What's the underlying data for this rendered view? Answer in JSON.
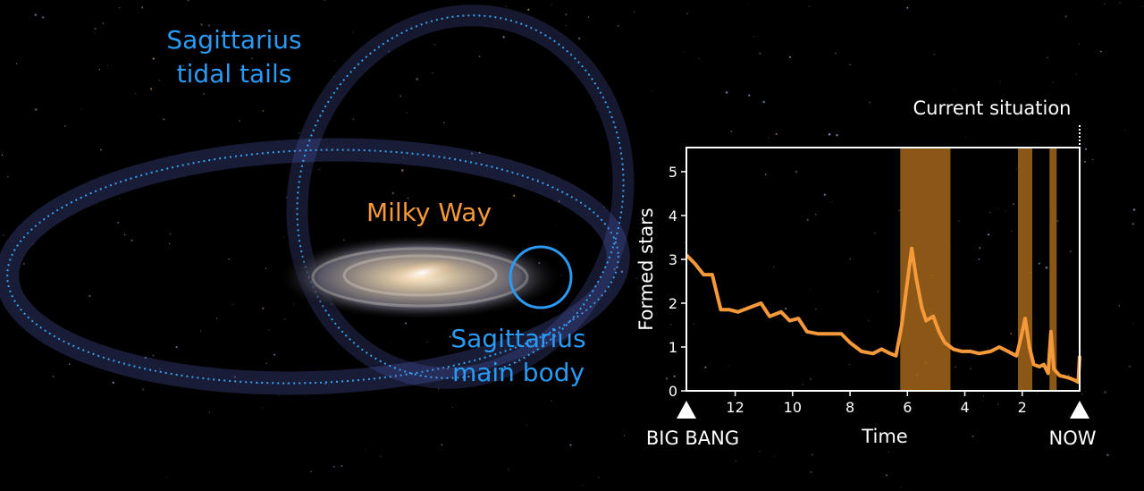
{
  "chart_data": {
    "type": "line",
    "annotations": [
      [
        "Sagittarius",
        "tidal tails"
      ],
      [
        "Milky Way"
      ],
      [
        "Sagittarius",
        "main body"
      ]
    ],
    "start_label": "BIG BANG",
    "end_label": "NOW",
    "current_label": "Current situation",
    "x_label": "Time",
    "y_label": "Formed stars",
    "xlim": [
      13.7,
      0
    ],
    "ylim": [
      0,
      5.55
    ],
    "xticks": [
      12,
      10,
      8,
      6,
      4,
      2
    ],
    "yticks": [
      0,
      1,
      2,
      3,
      4,
      5
    ],
    "bands": [
      [
        6.25,
        4.5
      ],
      [
        2.15,
        1.65
      ],
      [
        1.05,
        0.8
      ]
    ],
    "band_color": "#b8741f",
    "x": [
      13.7,
      13.4,
      13.1,
      12.8,
      12.5,
      12.2,
      11.9,
      11.5,
      11.1,
      10.8,
      10.4,
      10.1,
      9.8,
      9.5,
      9.1,
      8.6,
      8.3,
      8.0,
      7.6,
      7.2,
      6.9,
      6.6,
      6.4,
      6.2,
      6.0,
      5.85,
      5.7,
      5.5,
      5.35,
      5.1,
      4.9,
      4.7,
      4.4,
      4.1,
      3.8,
      3.5,
      3.1,
      2.8,
      2.5,
      2.2,
      2.05,
      1.9,
      1.75,
      1.6,
      1.4,
      1.25,
      1.1,
      1.0,
      0.9,
      0.7,
      0.4,
      0.2,
      0.05,
      0
    ],
    "series": [
      {
        "name": "Formed stars",
        "color": "#f5993a",
        "values": [
          3.1,
          2.9,
          2.65,
          2.65,
          1.85,
          1.85,
          1.8,
          1.9,
          2.0,
          1.7,
          1.8,
          1.6,
          1.65,
          1.35,
          1.3,
          1.3,
          1.3,
          1.1,
          0.9,
          0.85,
          0.95,
          0.85,
          0.8,
          1.5,
          2.5,
          3.25,
          2.6,
          1.9,
          1.6,
          1.7,
          1.35,
          1.1,
          0.95,
          0.9,
          0.9,
          0.85,
          0.9,
          1.0,
          0.9,
          0.8,
          1.2,
          1.65,
          1.0,
          0.6,
          0.55,
          0.6,
          0.4,
          1.35,
          0.5,
          0.35,
          0.3,
          0.25,
          0.2,
          0.8
        ]
      }
    ]
  }
}
